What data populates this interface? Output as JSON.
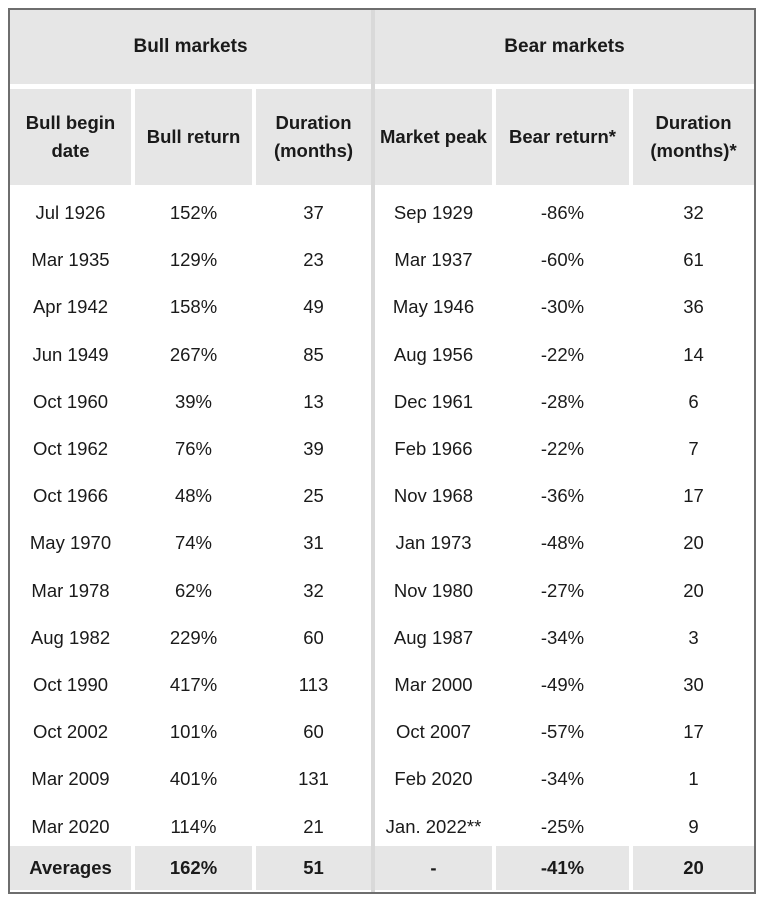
{
  "groups": {
    "bull": "Bull markets",
    "bear": "Bear markets"
  },
  "columns": [
    "Bull begin date",
    "Bull return",
    "Duration (months)",
    "Market peak",
    "Bear return*",
    "Duration (months)*"
  ],
  "rows": [
    [
      "Jul 1926",
      "152%",
      "37",
      "Sep 1929",
      "-86%",
      "32"
    ],
    [
      "Mar 1935",
      "129%",
      "23",
      "Mar 1937",
      "-60%",
      "61"
    ],
    [
      "Apr 1942",
      "158%",
      "49",
      "May 1946",
      "-30%",
      "36"
    ],
    [
      "Jun 1949",
      "267%",
      "85",
      "Aug 1956",
      "-22%",
      "14"
    ],
    [
      "Oct 1960",
      "39%",
      "13",
      "Dec 1961",
      "-28%",
      "6"
    ],
    [
      "Oct 1962",
      "76%",
      "39",
      "Feb 1966",
      "-22%",
      "7"
    ],
    [
      "Oct 1966",
      "48%",
      "25",
      "Nov 1968",
      "-36%",
      "17"
    ],
    [
      "May 1970",
      "74%",
      "31",
      "Jan 1973",
      "-48%",
      "20"
    ],
    [
      "Mar 1978",
      "62%",
      "32",
      "Nov 1980",
      "-27%",
      "20"
    ],
    [
      "Aug 1982",
      "229%",
      "60",
      "Aug 1987",
      "-34%",
      "3"
    ],
    [
      "Oct 1990",
      "417%",
      "113",
      "Mar 2000",
      "-49%",
      "30"
    ],
    [
      "Oct 2002",
      "101%",
      "60",
      "Oct 2007",
      "-57%",
      "17"
    ],
    [
      "Mar 2009",
      "401%",
      "131",
      "Feb 2020",
      "-34%",
      "1"
    ],
    [
      "Mar 2020",
      "114%",
      "21",
      "Jan. 2022**",
      "-25%",
      "9"
    ]
  ],
  "averages": [
    "Averages",
    "162%",
    "51",
    "-",
    "-41%",
    "20"
  ]
}
